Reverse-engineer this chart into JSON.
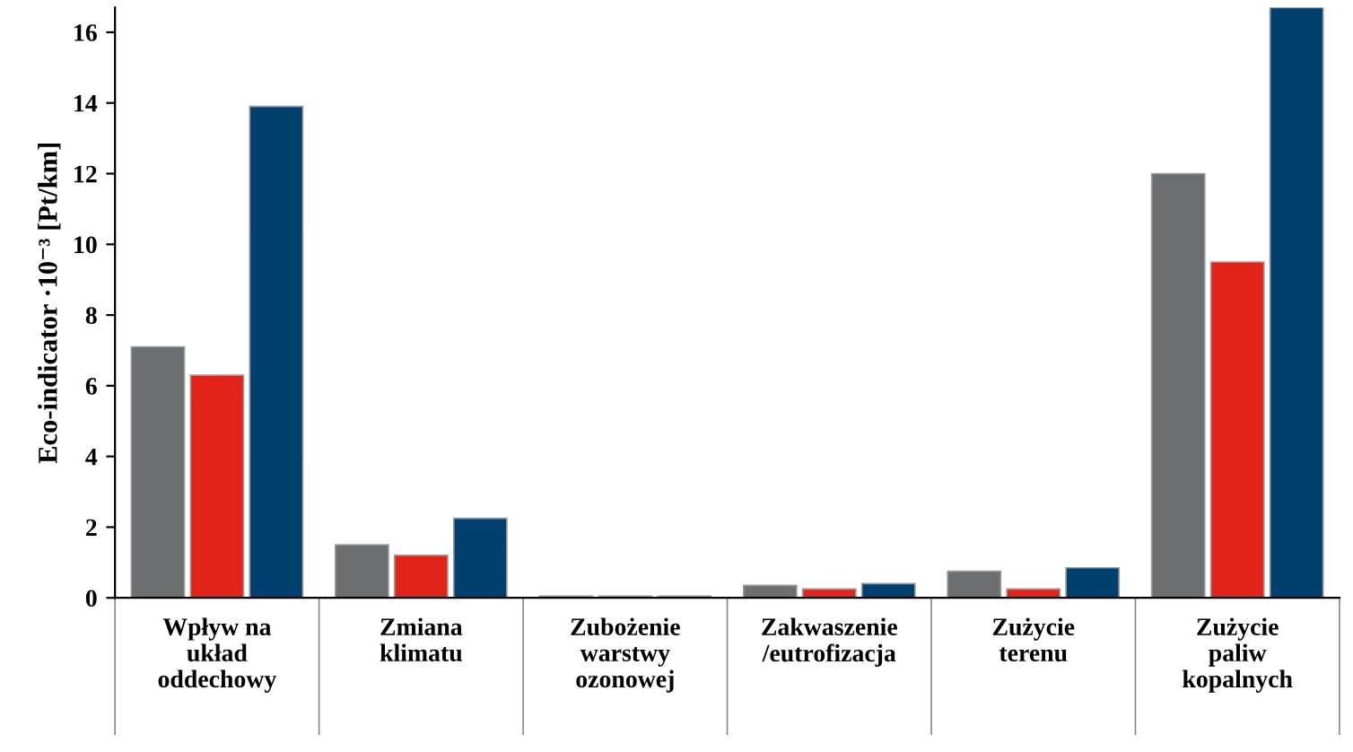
{
  "chart_data": {
    "type": "bar",
    "ylabel": "Eco-indicator ·10⁻³ [Pt/km]",
    "categories": [
      "Wpływ na\nukład\noddechowy",
      "Zmiana\nklimatu",
      "Zubożenie\nwarstwy\nozonowej",
      "Zakwaszenie\n/eutrofizacja",
      "Zużycie\nterenu",
      "Zużycie\npaliw\nkopalnych"
    ],
    "series": [
      {
        "color": "#6d6e70",
        "values": [
          7.1,
          1.5,
          0.05,
          0.35,
          0.75,
          12.0
        ]
      },
      {
        "color": "#e2231a",
        "values": [
          6.3,
          1.2,
          0.05,
          0.25,
          0.25,
          9.5
        ]
      },
      {
        "color": "#003f6e",
        "values": [
          13.9,
          2.25,
          0.05,
          0.4,
          0.85,
          16.7
        ]
      }
    ],
    "ylim": [
      0,
      16.7
    ],
    "yticks": [
      0,
      2,
      4,
      6,
      8,
      10,
      12,
      14,
      16
    ],
    "grid": false,
    "legend": false
  }
}
